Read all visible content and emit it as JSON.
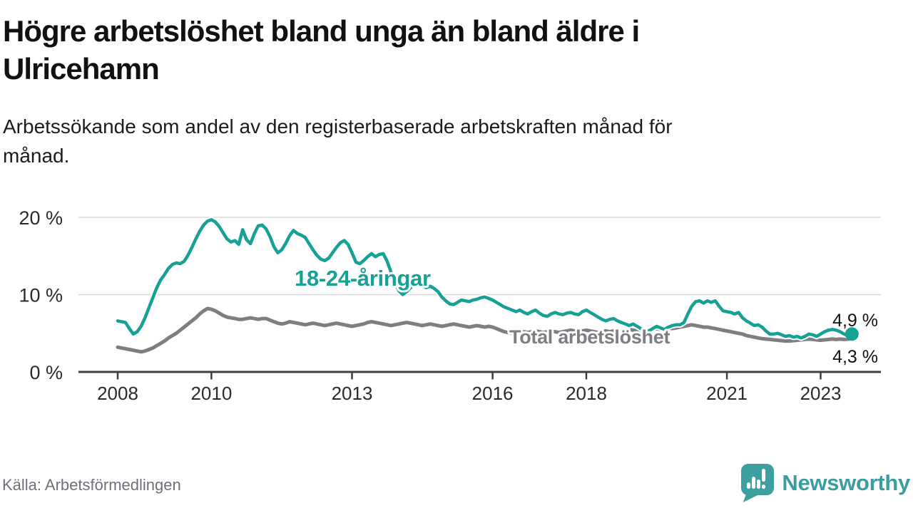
{
  "title": "Högre arbetslöshet bland unga än bland äldre i\nUlricehamn",
  "subtitle": "Arbetssökande som andel av den registerbaserade arbetskraften månad för\nmånad.",
  "footer": {
    "source": "Källa: Arbetsförmedlingen",
    "brand": "Newsworthy"
  },
  "colors": {
    "youth_line": "#16a194",
    "total_line": "#7e7d82",
    "end_label_text": "#121212",
    "axis_line": "#3f3f3f",
    "gridline": "#d8d8d8",
    "tick_text": "#2b2b2b",
    "brand_teal": "#3a9ea0",
    "halo": "#ffffff"
  },
  "chart_data": {
    "type": "line",
    "frequency": "monthly",
    "x_start": {
      "year": 2008,
      "month": 1
    },
    "x_end": {
      "year": 2023,
      "month": 9
    },
    "y_axis": {
      "unit": "%",
      "range": [
        0,
        22
      ],
      "ticks": [
        {
          "label": "0 %",
          "value": 0
        },
        {
          "label": "10 %",
          "value": 10
        },
        {
          "label": "20 %",
          "value": 20
        }
      ]
    },
    "x_axis": {
      "ticks": [
        {
          "label": "2008",
          "year": 2008
        },
        {
          "label": "2010",
          "year": 2010
        },
        {
          "label": "2013",
          "year": 2013
        },
        {
          "label": "2016",
          "year": 2016
        },
        {
          "label": "2018",
          "year": 2018
        },
        {
          "label": "2021",
          "year": 2021
        },
        {
          "label": "2023",
          "year": 2023
        }
      ]
    },
    "series": [
      {
        "name": "total",
        "label": "Total arbetslöshet",
        "color": "#7e7d82",
        "end_label": "4,3 %",
        "end_value": 4.3,
        "end_dot": false,
        "values": [
          3.2,
          3.1,
          3.0,
          2.9,
          2.8,
          2.7,
          2.6,
          2.7,
          2.9,
          3.1,
          3.4,
          3.7,
          4.0,
          4.4,
          4.7,
          5.0,
          5.4,
          5.8,
          6.2,
          6.6,
          7.0,
          7.5,
          7.9,
          8.2,
          8.1,
          7.9,
          7.6,
          7.3,
          7.1,
          7.0,
          6.9,
          6.8,
          6.8,
          6.9,
          7.0,
          6.9,
          6.8,
          6.9,
          6.9,
          6.7,
          6.5,
          6.3,
          6.2,
          6.3,
          6.5,
          6.4,
          6.3,
          6.2,
          6.1,
          6.2,
          6.3,
          6.2,
          6.1,
          6.0,
          6.1,
          6.2,
          6.3,
          6.2,
          6.1,
          6.0,
          5.9,
          6.0,
          6.1,
          6.2,
          6.4,
          6.5,
          6.4,
          6.3,
          6.2,
          6.1,
          6.0,
          6.1,
          6.2,
          6.3,
          6.4,
          6.3,
          6.2,
          6.1,
          6.0,
          6.1,
          6.2,
          6.1,
          6.0,
          5.9,
          6.0,
          6.1,
          6.2,
          6.1,
          6.0,
          5.9,
          5.8,
          5.9,
          6.0,
          5.9,
          5.8,
          5.9,
          5.8,
          5.6,
          5.4,
          5.2,
          5.1,
          5.0,
          5.1,
          5.2,
          5.2,
          5.1,
          5.2,
          5.3,
          5.2,
          5.1,
          5.2,
          5.3,
          5.2,
          5.1,
          5.2,
          5.3,
          5.4,
          5.3,
          5.2,
          5.3,
          5.4,
          5.3,
          5.2,
          5.1,
          5.2,
          5.3,
          5.2,
          5.3,
          5.4,
          5.3,
          5.4,
          5.5,
          5.4,
          5.3,
          5.4,
          5.5,
          5.4,
          5.5,
          5.6,
          5.5,
          5.6,
          5.7,
          5.6,
          5.7,
          5.8,
          5.9,
          6.0,
          6.1,
          6.0,
          5.9,
          5.8,
          5.8,
          5.7,
          5.6,
          5.5,
          5.4,
          5.3,
          5.2,
          5.1,
          5.0,
          4.9,
          4.7,
          4.6,
          4.5,
          4.4,
          4.3,
          4.25,
          4.2,
          4.15,
          4.1,
          4.05,
          4.0,
          4.0,
          4.05,
          4.1,
          4.15,
          4.2,
          4.25,
          4.2,
          4.15,
          4.1,
          4.15,
          4.2,
          4.25,
          4.2,
          4.25,
          4.2,
          4.25,
          4.3
        ]
      },
      {
        "name": "youth",
        "label": "18-24-åringar",
        "color": "#16a194",
        "end_label": "4,9 %",
        "end_value": 4.9,
        "end_dot": true,
        "values": [
          6.6,
          6.5,
          6.4,
          5.6,
          4.9,
          5.2,
          5.9,
          7.0,
          8.3,
          9.6,
          10.9,
          11.9,
          12.6,
          13.4,
          13.9,
          14.1,
          14.0,
          14.3,
          15.1,
          16.1,
          17.2,
          18.2,
          19.0,
          19.5,
          19.7,
          19.4,
          18.8,
          18.0,
          17.2,
          16.8,
          17.0,
          16.5,
          18.4,
          17.1,
          16.6,
          17.9,
          18.9,
          19.0,
          18.5,
          17.5,
          16.2,
          15.4,
          15.8,
          16.6,
          17.6,
          18.3,
          17.9,
          17.7,
          17.4,
          16.6,
          15.8,
          15.1,
          14.6,
          14.4,
          14.7,
          15.4,
          16.1,
          16.7,
          17.0,
          16.5,
          15.4,
          14.2,
          14.0,
          14.4,
          14.9,
          15.3,
          14.9,
          15.2,
          15.3,
          14.3,
          12.9,
          11.5,
          10.5,
          10.0,
          10.4,
          10.9,
          11.3,
          11.6,
          11.2,
          10.9,
          11.1,
          10.8,
          10.4,
          9.7,
          9.2,
          8.8,
          8.7,
          9.0,
          9.3,
          9.2,
          9.1,
          9.3,
          9.4,
          9.6,
          9.7,
          9.5,
          9.3,
          9.0,
          8.7,
          8.4,
          8.2,
          8.0,
          7.8,
          8.0,
          7.7,
          7.5,
          7.8,
          8.0,
          7.6,
          7.3,
          7.2,
          7.5,
          7.7,
          7.5,
          7.4,
          7.6,
          7.7,
          7.5,
          7.4,
          7.8,
          8.0,
          7.7,
          7.4,
          7.1,
          6.8,
          6.6,
          6.8,
          6.9,
          6.6,
          6.4,
          6.2,
          6.0,
          6.2,
          5.9,
          5.6,
          5.4,
          5.3,
          5.6,
          5.9,
          5.7,
          5.5,
          5.8,
          6.0,
          6.1,
          6.1,
          6.4,
          7.5,
          8.5,
          9.1,
          9.2,
          8.9,
          9.2,
          9.0,
          9.2,
          8.5,
          7.9,
          7.8,
          7.7,
          7.5,
          7.7,
          7.0,
          6.6,
          6.3,
          6.0,
          6.1,
          5.8,
          5.3,
          4.9,
          4.9,
          5.0,
          4.8,
          4.6,
          4.7,
          4.5,
          4.6,
          4.4,
          4.6,
          4.9,
          4.8,
          4.6,
          4.9,
          5.2,
          5.4,
          5.5,
          5.4,
          5.2,
          4.9,
          4.7,
          4.9
        ]
      }
    ]
  }
}
